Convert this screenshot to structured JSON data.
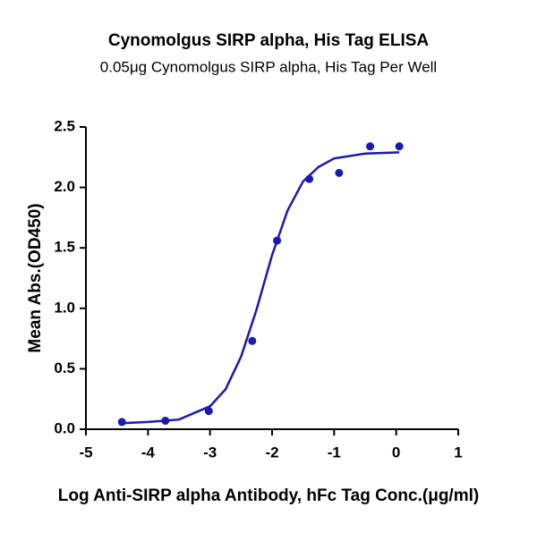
{
  "chart_data": {
    "type": "scatter",
    "title": "Cynomolgus SIRP alpha, His Tag ELISA",
    "subtitle": "0.05μg Cynomolgus SIRP alpha, His Tag Per Well",
    "x_label": "Log Anti-SIRP alpha Antibody, hFc Tag Conc.(μg/ml)",
    "y_label": "Mean Abs.(OD450)",
    "xlim": [
      -5,
      1
    ],
    "xticks": [
      -5,
      -4,
      -3,
      -2,
      -1,
      0,
      1
    ],
    "ylim": [
      0,
      2.5
    ],
    "yticks": [
      {
        "value": 0,
        "label": "0.0"
      },
      0.5,
      {
        "value": 1,
        "label": "1.0"
      },
      1.5,
      {
        "value": 2,
        "label": "2.0"
      },
      2.5
    ],
    "series": [
      {
        "mode": "markers",
        "color": "#1a1aae",
        "x": [
          -4.42,
          -3.72,
          -3.02,
          -2.32,
          -1.92,
          -1.4,
          -0.92,
          -0.42,
          0.05
        ],
        "values": [
          0.06,
          0.07,
          0.15,
          0.73,
          1.56,
          2.07,
          2.12,
          2.34,
          2.34
        ]
      },
      {
        "mode": "line",
        "color": "#1a1aae",
        "x": [
          -4.42,
          -4,
          -3.5,
          -3,
          -2.75,
          -2.5,
          -2.25,
          -2,
          -1.75,
          -1.5,
          -1.25,
          -1,
          -0.5,
          0.05
        ],
        "values": [
          0.05,
          0.06,
          0.08,
          0.19,
          0.33,
          0.6,
          0.99,
          1.44,
          1.81,
          2.05,
          2.17,
          2.24,
          2.28,
          2.29
        ]
      }
    ]
  }
}
